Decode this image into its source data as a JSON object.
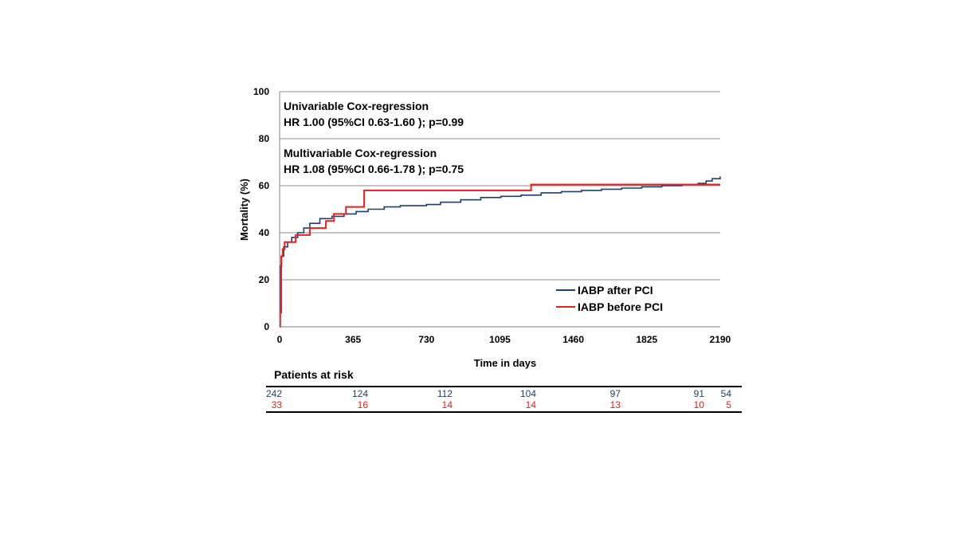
{
  "chart_data": {
    "type": "line",
    "title": "",
    "xlabel": "Time in days",
    "ylabel": "Mortality (%)",
    "xlim": [
      0,
      2190
    ],
    "ylim": [
      0,
      100
    ],
    "x_ticks": [
      0,
      365,
      730,
      1095,
      1460,
      1825,
      2190
    ],
    "y_ticks": [
      0,
      20,
      40,
      60,
      80,
      100
    ],
    "grid": "horizontal",
    "legend_position": "bottom-right",
    "annotations": [
      {
        "line1": "Univariable Cox-regression",
        "line2": "HR 1.00 (95%CI 0.63-1.60 ); p=0.99"
      },
      {
        "line1": "Multivariable Cox-regression",
        "line2": "HR 1.08 (95%CI 0.66-1.78 ); p=0.75"
      }
    ],
    "series": [
      {
        "name": "IABP after PCI",
        "color": "#1f3f6e",
        "step": true,
        "points": [
          [
            0,
            0
          ],
          [
            2,
            22
          ],
          [
            5,
            26
          ],
          [
            10,
            30
          ],
          [
            20,
            34
          ],
          [
            40,
            36
          ],
          [
            60,
            38
          ],
          [
            90,
            40
          ],
          [
            120,
            42
          ],
          [
            150,
            44
          ],
          [
            200,
            46
          ],
          [
            260,
            47
          ],
          [
            320,
            48
          ],
          [
            380,
            49
          ],
          [
            440,
            50
          ],
          [
            520,
            51
          ],
          [
            600,
            51.5
          ],
          [
            730,
            52
          ],
          [
            800,
            53
          ],
          [
            900,
            54
          ],
          [
            1000,
            55
          ],
          [
            1100,
            55.5
          ],
          [
            1200,
            56
          ],
          [
            1300,
            57
          ],
          [
            1400,
            57.5
          ],
          [
            1500,
            58
          ],
          [
            1600,
            58.5
          ],
          [
            1700,
            59
          ],
          [
            1800,
            59.5
          ],
          [
            1900,
            60
          ],
          [
            2000,
            60.5
          ],
          [
            2080,
            61
          ],
          [
            2120,
            62
          ],
          [
            2150,
            63
          ],
          [
            2190,
            64
          ]
        ]
      },
      {
        "name": "IABP before PCI",
        "color": "#e8201e",
        "step": true,
        "points": [
          [
            0,
            0
          ],
          [
            3,
            6
          ],
          [
            8,
            30
          ],
          [
            15,
            33
          ],
          [
            25,
            36
          ],
          [
            80,
            39
          ],
          [
            150,
            42
          ],
          [
            230,
            45
          ],
          [
            270,
            48
          ],
          [
            330,
            51
          ],
          [
            420,
            58
          ],
          [
            1250,
            60.5
          ],
          [
            2190,
            60.5
          ]
        ]
      }
    ]
  },
  "risk_table": {
    "title": "Patients at risk",
    "rows": [
      {
        "color": "#1f3f6e",
        "values": [
          "242",
          "124",
          "112",
          "104",
          "97",
          "91",
          "54"
        ]
      },
      {
        "color": "#e8201e",
        "values": [
          "33",
          "16",
          "14",
          "14",
          "13",
          "10",
          "5"
        ]
      }
    ]
  }
}
